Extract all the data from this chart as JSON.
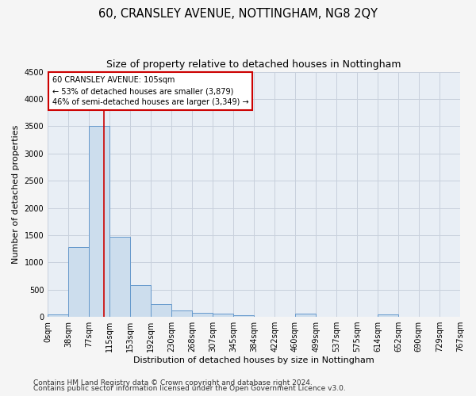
{
  "title": "60, CRANSLEY AVENUE, NOTTINGHAM, NG8 2QY",
  "subtitle": "Size of property relative to detached houses in Nottingham",
  "xlabel": "Distribution of detached houses by size in Nottingham",
  "ylabel": "Number of detached properties",
  "bin_edges": [
    0,
    38,
    77,
    115,
    153,
    192,
    230,
    268,
    307,
    345,
    384,
    422,
    460,
    499,
    537,
    575,
    614,
    652,
    690,
    729,
    767
  ],
  "bar_heights": [
    40,
    1280,
    3500,
    1470,
    580,
    240,
    115,
    80,
    55,
    30,
    0,
    0,
    60,
    0,
    0,
    0,
    50,
    0,
    0,
    0
  ],
  "bar_color": "#ccdded",
  "bar_edge_color": "#6699cc",
  "property_size": 105,
  "vline_color": "#cc0000",
  "annotation_box_color": "#cc0000",
  "annotation_text_line1": "60 CRANSLEY AVENUE: 105sqm",
  "annotation_text_line2": "← 53% of detached houses are smaller (3,879)",
  "annotation_text_line3": "46% of semi-detached houses are larger (3,349) →",
  "ylim": [
    0,
    4500
  ],
  "yticks": [
    0,
    500,
    1000,
    1500,
    2000,
    2500,
    3000,
    3500,
    4000,
    4500
  ],
  "footnote1": "Contains HM Land Registry data © Crown copyright and database right 2024.",
  "footnote2": "Contains public sector information licensed under the Open Government Licence v3.0.",
  "fig_bg_color": "#f5f5f5",
  "plot_bg_color": "#e8eef5",
  "grid_color": "#c8d0dc",
  "title_fontsize": 10.5,
  "subtitle_fontsize": 9,
  "axis_label_fontsize": 8,
  "tick_fontsize": 7,
  "footnote_fontsize": 6.5
}
